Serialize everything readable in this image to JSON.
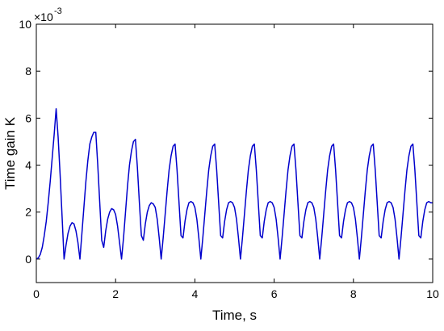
{
  "chart_data": {
    "type": "line",
    "title": "",
    "xlabel": "Time, s",
    "ylabel": "Time gain K",
    "xlim": [
      0,
      10
    ],
    "ylim": [
      -0.001,
      0.01
    ],
    "x_ticks": [
      0,
      2,
      4,
      6,
      8,
      10
    ],
    "x_tick_labels": [
      "0",
      "2",
      "4",
      "6",
      "8",
      "10"
    ],
    "y_ticks": [
      0,
      0.002,
      0.004,
      0.006,
      0.008,
      0.01
    ],
    "y_tick_labels": [
      "0",
      "2",
      "4",
      "6",
      "8",
      "10"
    ],
    "y_exponent_label": "×10",
    "y_exponent_power": "-3",
    "grid": false,
    "legend": "none",
    "colors": {
      "line": "#0000cc",
      "axes": "#000000"
    },
    "series": [
      {
        "x": [
          0,
          0.05,
          0.1,
          0.15,
          0.2,
          0.25,
          0.3,
          0.35,
          0.4,
          0.45,
          0.5,
          0.55,
          0.6,
          0.65,
          0.7,
          0.75,
          0.8,
          0.85,
          0.9,
          0.95,
          1.0,
          1.05,
          1.1,
          1.15,
          1.2,
          1.25,
          1.3,
          1.35,
          1.4,
          1.45,
          1.5,
          1.55,
          1.6,
          1.65,
          1.7,
          1.75,
          1.8,
          1.85,
          1.9,
          1.95,
          2.0,
          2.05,
          2.1,
          2.15,
          2.2,
          2.25,
          2.3,
          2.35,
          2.4,
          2.45,
          2.5,
          2.55,
          2.6,
          2.65,
          2.7,
          2.75,
          2.8,
          2.85,
          2.9,
          2.95,
          3.0,
          3.05,
          3.1,
          3.15,
          3.2,
          3.25,
          3.3,
          3.35,
          3.4,
          3.45,
          3.5,
          3.55,
          3.6,
          3.65,
          3.7,
          3.75,
          3.8,
          3.85,
          3.9,
          3.95,
          4.0,
          4.05,
          4.1,
          4.15,
          4.2,
          4.25,
          4.3,
          4.35,
          4.4,
          4.45,
          4.5,
          4.55,
          4.6,
          4.65,
          4.7,
          4.75,
          4.8,
          4.85,
          4.9,
          4.95,
          5.0,
          5.05,
          5.1,
          5.15,
          5.2,
          5.25,
          5.3,
          5.35,
          5.4,
          5.45,
          5.5,
          5.55,
          5.6,
          5.65,
          5.7,
          5.75,
          5.8,
          5.85,
          5.9,
          5.95,
          6.0,
          6.05,
          6.1,
          6.15,
          6.2,
          6.25,
          6.3,
          6.35,
          6.4,
          6.45,
          6.5,
          6.55,
          6.6,
          6.65,
          6.7,
          6.75,
          6.8,
          6.85,
          6.9,
          6.95,
          7.0,
          7.05,
          7.1,
          7.15,
          7.2,
          7.25,
          7.3,
          7.35,
          7.4,
          7.45,
          7.5,
          7.55,
          7.6,
          7.65,
          7.7,
          7.75,
          7.8,
          7.85,
          7.9,
          7.95,
          8.0,
          8.05,
          8.1,
          8.15,
          8.2,
          8.25,
          8.3,
          8.35,
          8.4,
          8.45,
          8.5,
          8.55,
          8.6,
          8.65,
          8.7,
          8.75,
          8.8,
          8.85,
          8.9,
          8.95,
          9.0,
          9.05,
          9.1,
          9.15,
          9.2,
          9.25,
          9.3,
          9.35,
          9.4,
          9.45,
          9.5,
          9.55,
          9.6,
          9.65,
          9.7,
          9.75,
          9.8,
          9.85,
          9.9,
          9.95,
          10.0
        ],
        "y": [
          0.0,
          5e-05,
          0.0002,
          0.0005,
          0.001,
          0.0016,
          0.0024,
          0.0033,
          0.0043,
          0.0053,
          0.0064,
          0.0052,
          0.0036,
          0.0018,
          0.0,
          0.0006,
          0.0011,
          0.0014,
          0.00155,
          0.0015,
          0.0012,
          0.0007,
          0.0,
          0.0011,
          0.0022,
          0.0033,
          0.0042,
          0.0049,
          0.0052,
          0.0054,
          0.0054,
          0.004,
          0.0024,
          0.0008,
          0.0005,
          0.0012,
          0.0017,
          0.002,
          0.00215,
          0.0021,
          0.0019,
          0.0014,
          0.0007,
          0.0,
          0.0009,
          0.002,
          0.0031,
          0.004,
          0.0046,
          0.005,
          0.0051,
          0.0039,
          0.0024,
          0.001,
          0.0008,
          0.0015,
          0.002,
          0.00228,
          0.0024,
          0.00235,
          0.0022,
          0.0017,
          0.0009,
          0.0,
          0.0009,
          0.0019,
          0.0029,
          0.0038,
          0.0044,
          0.0048,
          0.0049,
          0.0038,
          0.0024,
          0.001,
          0.0009,
          0.0016,
          0.0021,
          0.0024,
          0.00245,
          0.0024,
          0.0022,
          0.0017,
          0.0009,
          0.0,
          0.0009,
          0.0019,
          0.0029,
          0.0038,
          0.0044,
          0.0048,
          0.0049,
          0.0038,
          0.0024,
          0.001,
          0.0009,
          0.0016,
          0.0021,
          0.0024,
          0.00245,
          0.0024,
          0.0022,
          0.0017,
          0.0009,
          0.0,
          0.0009,
          0.0019,
          0.0029,
          0.0038,
          0.0044,
          0.0048,
          0.0049,
          0.0038,
          0.0024,
          0.001,
          0.0009,
          0.0016,
          0.0021,
          0.0024,
          0.00245,
          0.0024,
          0.0022,
          0.0017,
          0.0009,
          0.0,
          0.0009,
          0.0019,
          0.0029,
          0.0038,
          0.0044,
          0.0048,
          0.0049,
          0.0038,
          0.0024,
          0.001,
          0.0009,
          0.0016,
          0.0021,
          0.0024,
          0.00245,
          0.0024,
          0.0022,
          0.0017,
          0.0009,
          0.0,
          0.0009,
          0.0019,
          0.0029,
          0.0038,
          0.0044,
          0.0048,
          0.0049,
          0.0038,
          0.0024,
          0.001,
          0.0009,
          0.0016,
          0.0021,
          0.0024,
          0.00245,
          0.0024,
          0.0022,
          0.0017,
          0.0009,
          0.0,
          0.0009,
          0.0019,
          0.0029,
          0.0038,
          0.0044,
          0.0048,
          0.0049,
          0.0038,
          0.0024,
          0.001,
          0.0009,
          0.0016,
          0.0021,
          0.0024,
          0.00245,
          0.0024,
          0.0022,
          0.0017,
          0.0009,
          0.0,
          0.0009,
          0.0019,
          0.0029,
          0.0038,
          0.0044,
          0.0048,
          0.0049,
          0.0038,
          0.0024,
          0.001,
          0.0009,
          0.0016,
          0.0021,
          0.0024,
          0.00245,
          0.0024,
          0.0024
        ]
      }
    ]
  }
}
